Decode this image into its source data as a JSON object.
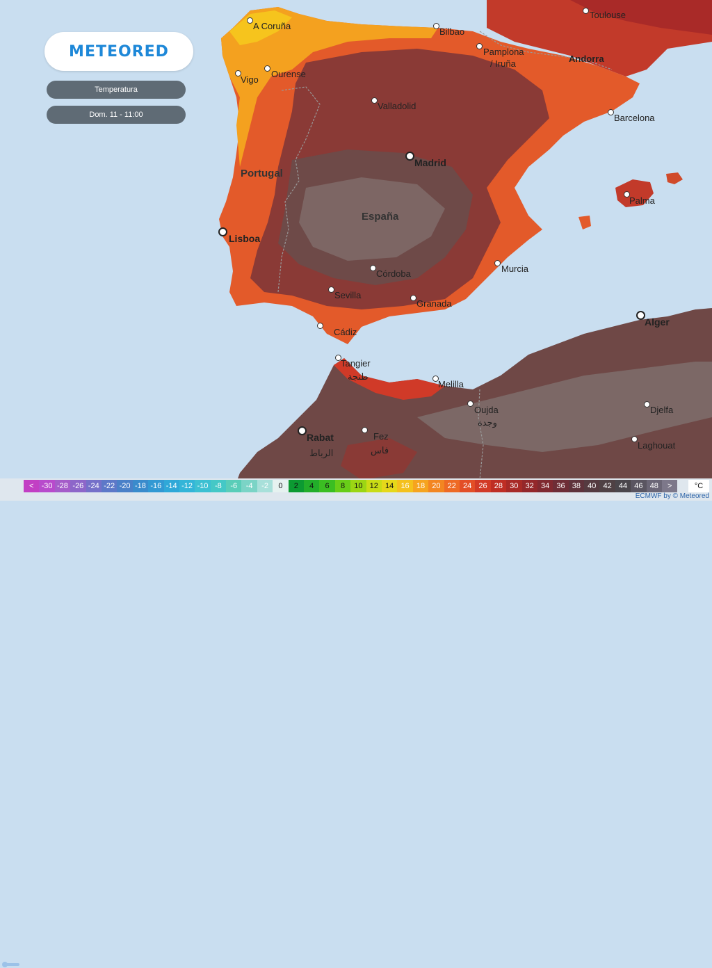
{
  "brand": {
    "logo_text": "METEORED"
  },
  "panel": {
    "variable": "Temperatura",
    "datetime": "Dom. 11 - 11:00"
  },
  "countries": [
    "Portugal",
    "España"
  ],
  "capitals": [
    "Madrid",
    "Lisboa",
    "Rabat",
    "Alger"
  ],
  "cities": [
    "Toulouse",
    "A Coruña",
    "Bilbao",
    "Pamplona",
    "/ Iruña",
    "Andorra",
    "Ourense",
    "Vigo",
    "Valladolid",
    "Barcelona",
    "Palma",
    "Córdoba",
    "Murcia",
    "Sevilla",
    "Granada",
    "Cádiz",
    "Tangier",
    "طنجة",
    "Melilla",
    "Oujda",
    "وجدة",
    "Djelfa",
    "Fez",
    "فاس",
    "Laghouat",
    "الرباط"
  ],
  "legend": {
    "labels": [
      "<",
      "-30",
      "-28",
      "-26",
      "-24",
      "-22",
      "-20",
      "-18",
      "-16",
      "-14",
      "-12",
      "-10",
      "-8",
      "-6",
      "-4",
      "-2",
      "0",
      "2",
      "4",
      "6",
      "8",
      "10",
      "12",
      "14",
      "16",
      "18",
      "20",
      "22",
      "24",
      "26",
      "28",
      "30",
      "32",
      "34",
      "36",
      "38",
      "40",
      "42",
      "44",
      "46",
      "48",
      ">"
    ],
    "colors": [
      "#c23fc4",
      "#b84bcc",
      "#a55cc9",
      "#8d66c9",
      "#7570c9",
      "#5d78c8",
      "#4a80c8",
      "#3a8bcc",
      "#3299d3",
      "#2fa8d8",
      "#33b5d8",
      "#3cc0d2",
      "#45c8c6",
      "#5acdb8",
      "#7bd4c6",
      "#a8e0da",
      "#e6f2f0",
      "#0c9a32",
      "#22ad2a",
      "#3bbe22",
      "#68cd18",
      "#9cd614",
      "#c9dc16",
      "#e6d81a",
      "#f4c11d",
      "#f6a41f",
      "#f38621",
      "#ee6a24",
      "#e34e26",
      "#d23a26",
      "#bf2e24",
      "#a82a26",
      "#94272a",
      "#802930",
      "#6e2d36",
      "#5f323b",
      "#553a40",
      "#4f4144",
      "#4a464b",
      "#5a5561",
      "#6b6676",
      "#7d788a"
    ],
    "unit": "°C",
    "credit": "ECMWF by © Meteored"
  }
}
